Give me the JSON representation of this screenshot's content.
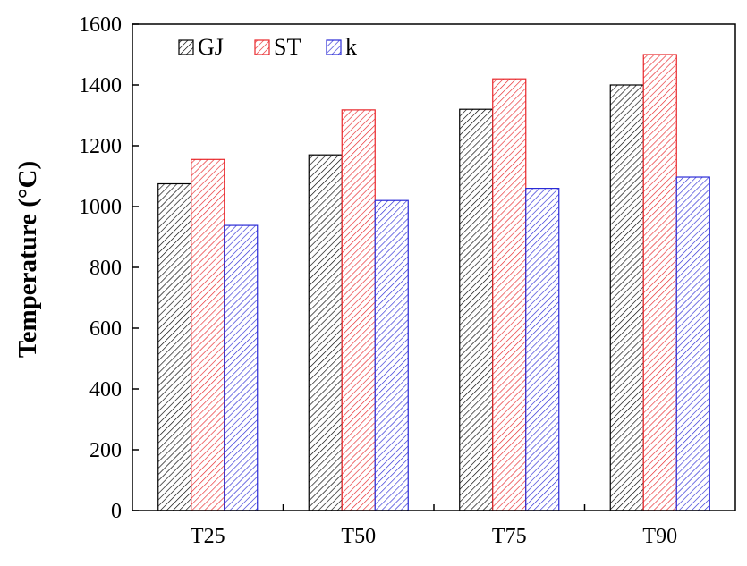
{
  "chart_data": {
    "type": "bar",
    "title": "",
    "xlabel": "",
    "ylabel": "Temperature (°C)",
    "ylim": [
      0,
      1600
    ],
    "yticks": [
      "0",
      "200",
      "400",
      "600",
      "800",
      "1000",
      "1200",
      "1400",
      "1600"
    ],
    "categories": [
      "T25",
      "T50",
      "T75",
      "T90"
    ],
    "grid": false,
    "legend_position": "top-left",
    "series": [
      {
        "name": "GJ",
        "values": [
          1075,
          1170,
          1320,
          1400
        ],
        "color": "#000000"
      },
      {
        "name": "ST",
        "values": [
          1155,
          1318,
          1420,
          1500
        ],
        "color": "#e8262a"
      },
      {
        "name": "k",
        "values": [
          938,
          1020,
          1060,
          1097
        ],
        "color": "#2b2bd6"
      }
    ]
  }
}
